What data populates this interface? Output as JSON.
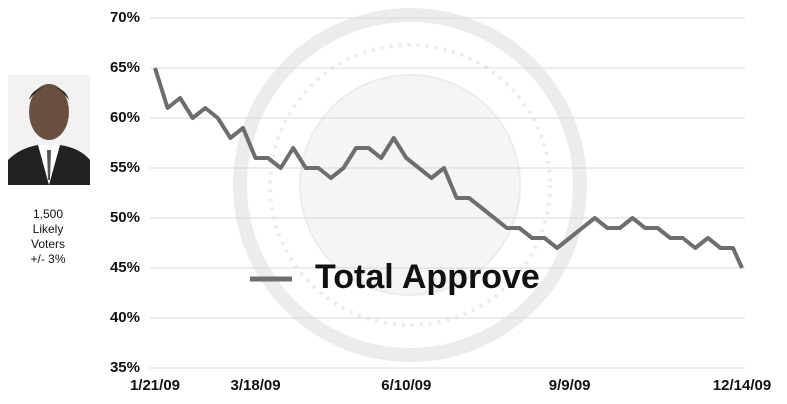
{
  "chart_data": {
    "type": "line",
    "caption": [
      "1,500",
      "Likely",
      "Voters",
      "+/- 3%"
    ],
    "x": [
      "1/21/09",
      "1/28/09",
      "2/4/09",
      "2/11/09",
      "2/18/09",
      "2/25/09",
      "3/4/09",
      "3/11/09",
      "3/18/09",
      "3/25/09",
      "4/1/09",
      "4/8/09",
      "4/15/09",
      "4/22/09",
      "4/29/09",
      "5/6/09",
      "5/13/09",
      "5/20/09",
      "5/27/09",
      "6/3/09",
      "6/10/09",
      "6/17/09",
      "6/24/09",
      "7/1/09",
      "7/8/09",
      "7/15/09",
      "7/22/09",
      "7/29/09",
      "8/5/09",
      "8/12/09",
      "8/19/09",
      "8/26/09",
      "9/2/09",
      "9/9/09",
      "9/16/09",
      "9/23/09",
      "9/30/09",
      "10/7/09",
      "10/14/09",
      "10/21/09",
      "10/28/09",
      "11/4/09",
      "11/11/09",
      "11/18/09",
      "11/25/09",
      "12/2/09",
      "12/9/09",
      "12/14/09"
    ],
    "series": [
      {
        "name": "Total Approve",
        "color": "#6e6e6e",
        "values": [
          65,
          61,
          62,
          60,
          61,
          60,
          58,
          59,
          56,
          56,
          55,
          57,
          55,
          55,
          54,
          55,
          57,
          57,
          56,
          58,
          56,
          55,
          54,
          55,
          52,
          52,
          51,
          50,
          49,
          49,
          48,
          48,
          47,
          48,
          49,
          50,
          49,
          49,
          50,
          49,
          49,
          48,
          48,
          47,
          48,
          47,
          47,
          45
        ]
      }
    ],
    "xlim": [
      "1/21/09",
      "12/14/09"
    ],
    "xticks": [
      "1/21/09",
      "3/18/09",
      "6/10/09",
      "9/9/09",
      "12/14/09"
    ],
    "ylim": [
      35,
      70
    ],
    "yticks": [
      {
        "value": 35,
        "label": "35%"
      },
      {
        "value": 40,
        "label": "40%"
      },
      {
        "value": 45,
        "label": "45%"
      },
      {
        "value": 50,
        "label": "50%"
      },
      {
        "value": 55,
        "label": "55%"
      },
      {
        "value": 60,
        "label": "60%"
      },
      {
        "value": 65,
        "label": "65%"
      },
      {
        "value": 70,
        "label": "70%"
      }
    ],
    "grid": true
  }
}
